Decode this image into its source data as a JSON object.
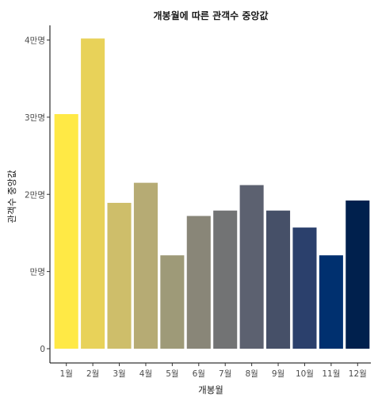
{
  "chart_data": {
    "type": "bar",
    "title": "개봉월에 따른 관객수 중앙값",
    "xlabel": "개봉월",
    "ylabel": "관객수 중앙값",
    "categories": [
      "1월",
      "2월",
      "3월",
      "4월",
      "5월",
      "6월",
      "7월",
      "8월",
      "9월",
      "10월",
      "11월",
      "12월"
    ],
    "values": [
      30400,
      40200,
      18900,
      21500,
      12100,
      17200,
      17900,
      21200,
      17900,
      15700,
      12100,
      19200
    ],
    "colors": [
      "#FFE945",
      "#E8D259",
      "#CEBE6A",
      "#B6AB74",
      "#9E9A78",
      "#898678",
      "#727374",
      "#5C6170",
      "#465068",
      "#2B406C",
      "#00306F",
      "#00204D"
    ],
    "yticks": [
      0,
      10000,
      20000,
      30000,
      40000
    ],
    "ytick_labels": [
      "0",
      "만명",
      "2만명",
      "3만명",
      "4만명"
    ],
    "ylim": [
      0,
      42500
    ],
    "grid": false,
    "legend": "none"
  }
}
